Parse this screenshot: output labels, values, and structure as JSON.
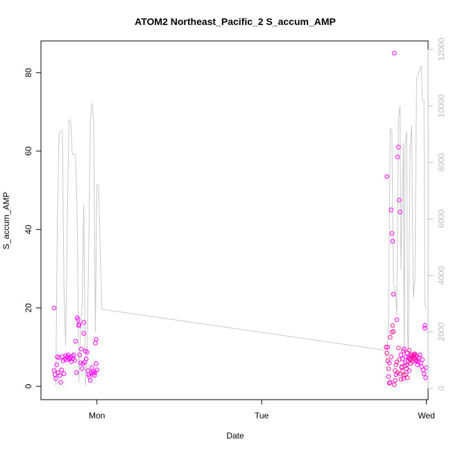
{
  "chart_data": {
    "type": "scatter",
    "title": "ATOM2 Northeast_Pacific_2 S_accum_AMP",
    "xlabel": "Date",
    "ylabel": "S_accum_AMP",
    "x_ticks": [
      "Mon",
      "Tue",
      "Wed"
    ],
    "xlim": [
      -0.34,
      2.01
    ],
    "ylim": [
      -3.4,
      88.1
    ],
    "y_ticks": [
      0,
      20,
      40,
      60,
      80
    ],
    "y2lim": [
      -400,
      12300
    ],
    "y2_ticks": [
      0,
      2000,
      4000,
      6000,
      8000,
      10000,
      12000
    ],
    "grid": false,
    "legend": "none",
    "colors": {
      "points_magenta": "#ff00ff",
      "points_pink": "#ff1493",
      "line": "#c8c8c8",
      "right_axis": "#bdbdbd"
    },
    "series": [
      {
        "type": "line",
        "axis": "right",
        "color": "#c8c8c8",
        "points": [
          [
            -0.25,
            100
          ],
          [
            -0.24,
            6000
          ],
          [
            -0.23,
            9000
          ],
          [
            -0.22,
            9100
          ],
          [
            -0.21,
            9100
          ],
          [
            -0.2,
            3500
          ],
          [
            -0.19,
            1500
          ],
          [
            -0.18,
            6000
          ],
          [
            -0.17,
            9500
          ],
          [
            -0.16,
            9500
          ],
          [
            -0.15,
            8300
          ],
          [
            -0.14,
            8300
          ],
          [
            -0.13,
            8250
          ],
          [
            -0.12,
            6200
          ],
          [
            -0.11,
            200
          ],
          [
            -0.1,
            2000
          ],
          [
            -0.09,
            3000
          ],
          [
            -0.08,
            6500
          ],
          [
            -0.07,
            100
          ],
          [
            -0.06,
            1300
          ],
          [
            -0.05,
            5000
          ],
          [
            -0.04,
            9400
          ],
          [
            -0.03,
            10100
          ],
          [
            -0.02,
            9500
          ],
          [
            -0.01,
            2000
          ],
          [
            0.0,
            7200
          ],
          [
            0.01,
            7200
          ],
          [
            0.02,
            4800
          ],
          [
            0.03,
            2800
          ],
          [
            1.75,
            1350
          ],
          [
            1.76,
            1000
          ],
          [
            1.77,
            2500
          ],
          [
            1.78,
            9200
          ],
          [
            1.79,
            9100
          ],
          [
            1.8,
            3700
          ],
          [
            1.81,
            3600
          ],
          [
            1.82,
            2600
          ],
          [
            1.83,
            9600
          ],
          [
            1.84,
            10000
          ],
          [
            1.845,
            4200
          ],
          [
            1.86,
            8700
          ],
          [
            1.865,
            800
          ],
          [
            1.87,
            8600
          ],
          [
            1.88,
            9100
          ],
          [
            1.885,
            2400
          ],
          [
            1.89,
            500
          ],
          [
            1.9,
            8500
          ],
          [
            1.91,
            9300
          ],
          [
            1.92,
            3200
          ],
          [
            1.93,
            3800
          ],
          [
            1.94,
            11000
          ],
          [
            1.95,
            11100
          ],
          [
            1.96,
            11300
          ],
          [
            1.97,
            11400
          ],
          [
            1.975,
            10200
          ],
          [
            1.98,
            10200
          ],
          [
            1.985,
            10200
          ],
          [
            1.99,
            3000
          ],
          [
            2.0,
            2800
          ]
        ]
      },
      {
        "type": "scatter",
        "axis": "left",
        "color": "#ff00ff",
        "points": [
          [
            -0.26,
            20.0
          ],
          [
            -0.26,
            4.0
          ],
          [
            -0.255,
            3.0
          ],
          [
            -0.25,
            2.0
          ],
          [
            -0.245,
            5.5
          ],
          [
            -0.24,
            7.5
          ],
          [
            -0.235,
            3.5
          ],
          [
            -0.23,
            7.3
          ],
          [
            -0.225,
            2.8
          ],
          [
            -0.22,
            1.0
          ],
          [
            -0.215,
            4.2
          ],
          [
            -0.21,
            7.6
          ],
          [
            -0.205,
            6.5
          ],
          [
            -0.2,
            3.2
          ],
          [
            -0.195,
            7.0
          ],
          [
            -0.19,
            7.8
          ],
          [
            -0.185,
            6.8
          ],
          [
            -0.18,
            7.4
          ],
          [
            -0.175,
            8.0
          ],
          [
            -0.17,
            7.2
          ],
          [
            -0.165,
            6.9
          ],
          [
            -0.16,
            7.5
          ],
          [
            -0.155,
            6.3
          ],
          [
            -0.15,
            7.7
          ],
          [
            -0.145,
            7.1
          ],
          [
            -0.14,
            8.0
          ],
          [
            -0.135,
            6.6
          ],
          [
            -0.13,
            11.5
          ],
          [
            -0.125,
            3.5
          ],
          [
            -0.12,
            17.5
          ],
          [
            -0.115,
            17.0
          ],
          [
            -0.11,
            15.5
          ],
          [
            -0.11,
            15.8
          ],
          [
            -0.105,
            8.0
          ],
          [
            -0.1,
            6.0
          ],
          [
            -0.095,
            9.5
          ],
          [
            -0.09,
            4.5
          ],
          [
            -0.085,
            5.8
          ],
          [
            -0.08,
            13.5
          ],
          [
            -0.08,
            16.3
          ],
          [
            -0.075,
            6.2
          ],
          [
            -0.07,
            9.0
          ],
          [
            -0.065,
            7.0
          ],
          [
            -0.06,
            8.7
          ],
          [
            -0.055,
            4.0
          ],
          [
            -0.05,
            3.0
          ],
          [
            -0.045,
            2.5
          ],
          [
            -0.04,
            1.5
          ],
          [
            -0.035,
            3.5
          ],
          [
            -0.03,
            4.8
          ],
          [
            -0.025,
            3.8
          ],
          [
            -0.02,
            3.3
          ],
          [
            -0.015,
            2.8
          ],
          [
            -0.01,
            11.0
          ],
          [
            -0.01,
            3.6
          ],
          [
            -0.005,
            12.0
          ],
          [
            -0.005,
            5.8
          ],
          [
            0.0,
            4.2
          ],
          [
            1.76,
            53.5
          ],
          [
            1.765,
            10.0
          ],
          [
            1.77,
            2.5
          ],
          [
            1.775,
            6.0
          ],
          [
            1.78,
            1.0
          ],
          [
            1.785,
            45.0
          ],
          [
            1.79,
            39.0
          ],
          [
            1.795,
            37.0
          ],
          [
            1.8,
            23.5
          ],
          [
            1.805,
            85.0
          ],
          [
            1.81,
            1.5
          ],
          [
            1.815,
            3.0
          ],
          [
            1.82,
            17.0
          ],
          [
            1.825,
            58.5
          ],
          [
            1.83,
            61.0
          ],
          [
            1.835,
            47.5
          ],
          [
            1.84,
            44.5
          ],
          [
            1.845,
            8.0
          ],
          [
            1.85,
            5.0
          ],
          [
            1.855,
            7.0
          ],
          [
            1.86,
            2.0
          ],
          [
            1.865,
            9.5
          ],
          [
            1.87,
            6.0
          ],
          [
            1.875,
            7.5
          ],
          [
            1.88,
            5.5
          ],
          [
            1.885,
            8.5
          ],
          [
            1.89,
            7.2
          ],
          [
            1.895,
            4.0
          ],
          [
            1.9,
            6.8
          ],
          [
            1.905,
            8.0
          ],
          [
            1.91,
            7.5
          ],
          [
            1.915,
            6.3
          ],
          [
            1.92,
            7.8
          ],
          [
            1.925,
            8.2
          ],
          [
            1.93,
            7.0
          ],
          [
            1.935,
            6.5
          ],
          [
            1.94,
            7.7
          ],
          [
            1.945,
            5.5
          ],
          [
            1.95,
            6.2
          ],
          [
            1.955,
            7.4
          ],
          [
            1.96,
            8.0
          ],
          [
            1.965,
            6.0
          ],
          [
            1.97,
            5.0
          ],
          [
            1.975,
            6.8
          ],
          [
            1.98,
            4.2
          ],
          [
            1.985,
            3.2
          ],
          [
            1.99,
            15.5
          ],
          [
            1.99,
            14.8
          ],
          [
            1.995,
            2.2
          ],
          [
            2.0,
            4.8
          ]
        ]
      },
      {
        "type": "scatter",
        "axis": "left",
        "color": "#ff1493",
        "points": [
          [
            1.755,
            10.0
          ],
          [
            1.76,
            8.5
          ],
          [
            1.765,
            6.5
          ],
          [
            1.77,
            4.5
          ],
          [
            1.775,
            0.8
          ],
          [
            1.78,
            12.5
          ],
          [
            1.785,
            7.5
          ],
          [
            1.79,
            13.8
          ],
          [
            1.795,
            15.5
          ],
          [
            1.8,
            14.0
          ],
          [
            1.805,
            0.4
          ],
          [
            1.81,
            4.0
          ],
          [
            1.815,
            5.5
          ],
          [
            1.82,
            6.2
          ],
          [
            1.825,
            3.5
          ],
          [
            1.83,
            9.8
          ],
          [
            1.835,
            6.8
          ],
          [
            1.84,
            3.2
          ],
          [
            1.845,
            1.8
          ],
          [
            1.85,
            4.8
          ],
          [
            1.855,
            3.8
          ],
          [
            1.86,
            9.0
          ],
          [
            1.865,
            2.8
          ],
          [
            1.87,
            5.2
          ],
          [
            1.875,
            3.0
          ],
          [
            1.88,
            4.5
          ],
          [
            1.885,
            2.2
          ],
          [
            1.89,
            6.5
          ],
          [
            1.895,
            9.2
          ],
          [
            1.9,
            7.0
          ],
          [
            1.905,
            5.8
          ],
          [
            1.91,
            8.0
          ],
          [
            1.915,
            7.5
          ],
          [
            1.92,
            6.9
          ],
          [
            1.925,
            7.9
          ],
          [
            1.93,
            8.3
          ],
          [
            1.935,
            7.3
          ],
          [
            1.94,
            6.6
          ]
        ]
      }
    ]
  }
}
